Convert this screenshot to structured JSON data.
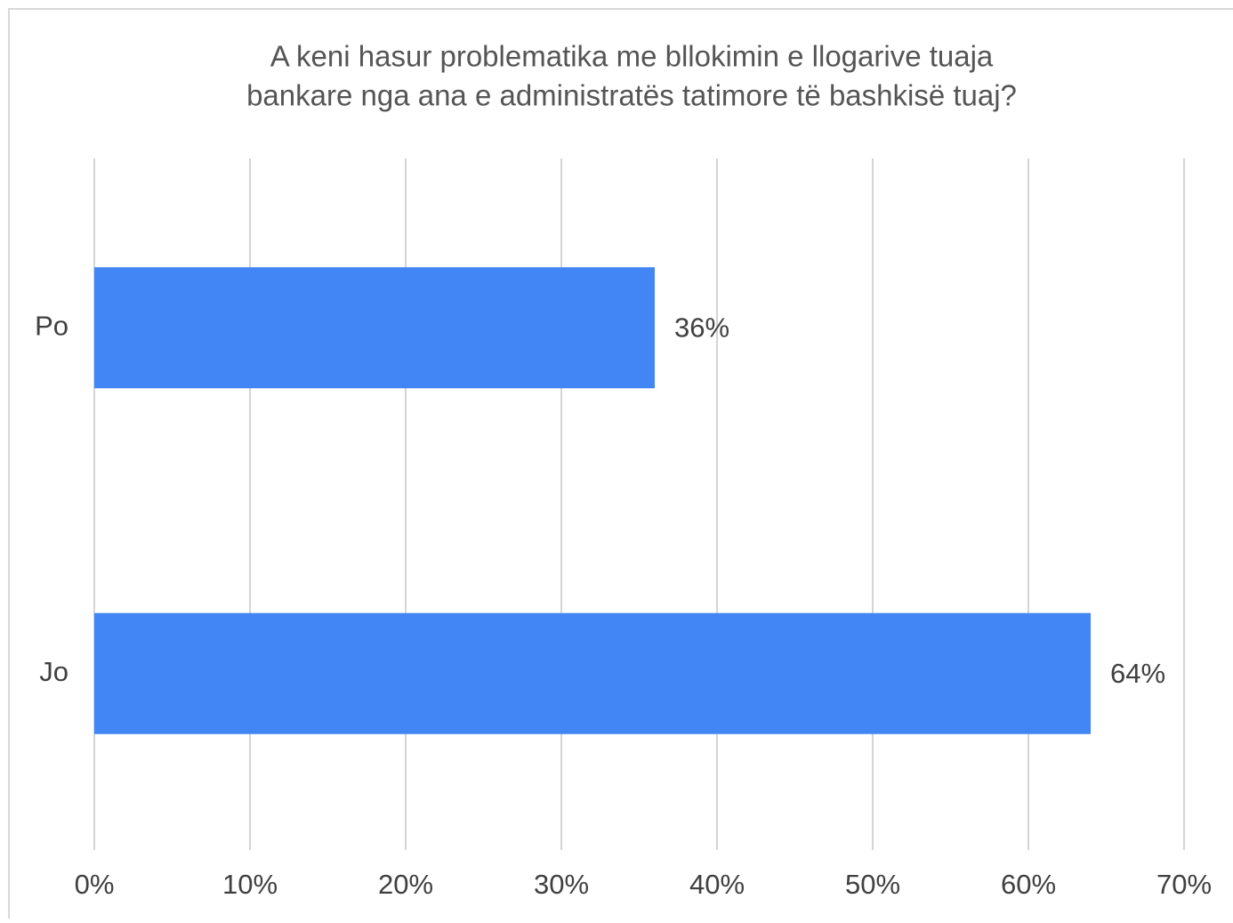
{
  "chart_data": {
    "type": "barh",
    "title": [
      "A keni hasur problematika me bllokimin e llogarive tuaja",
      "bankare nga ana e administratës tatimore të bashkisë tuaj?"
    ],
    "categories": [
      "Po",
      "Jo"
    ],
    "values": [
      36,
      64
    ],
    "value_labels": [
      "36%",
      "64%"
    ],
    "color": "#4285f4",
    "xlim": [
      0,
      70
    ],
    "xticks": [
      {
        "value": 0,
        "label": "0%"
      },
      {
        "value": 10,
        "label": "10%"
      },
      {
        "value": 20,
        "label": "20%"
      },
      {
        "value": 30,
        "label": "30%"
      },
      {
        "value": 40,
        "label": "40%"
      },
      {
        "value": 50,
        "label": "50%"
      },
      {
        "value": 60,
        "label": "60%"
      },
      {
        "value": 70,
        "label": "70%"
      }
    ],
    "grid": true
  }
}
